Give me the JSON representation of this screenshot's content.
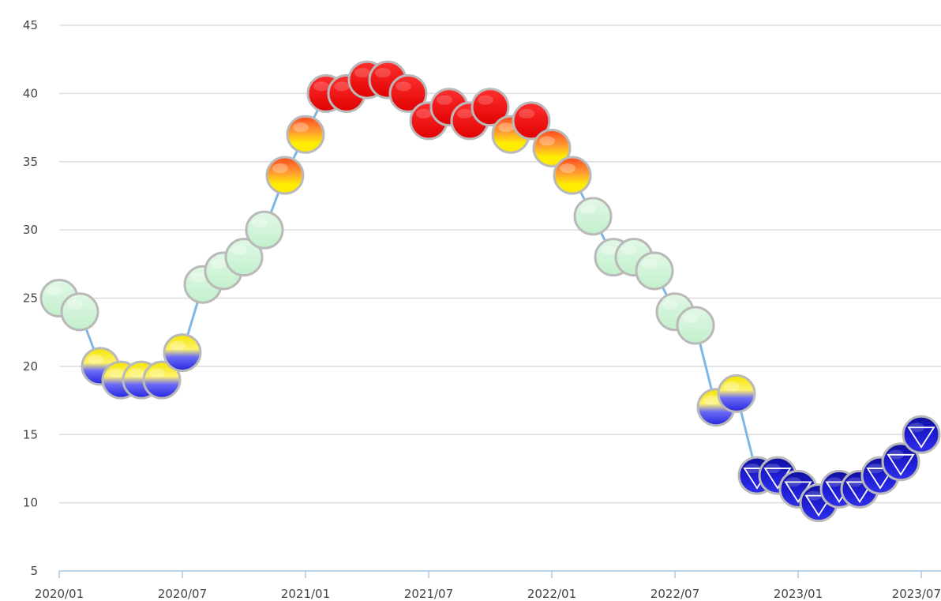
{
  "colors": {
    "line": "#7fb6e6",
    "grid": "#dcdcdc",
    "axis": "#a8c6e0",
    "low": "#1a1ad6",
    "mid": "#c8f0d0",
    "high": "#ff1a1a",
    "yellow": "#ffee00",
    "orange": "#ff7a20"
  },
  "chart_data": {
    "type": "line",
    "title": "",
    "xlabel": "",
    "ylabel": "",
    "ylim": [
      5,
      45
    ],
    "y_ticks": [
      5,
      10,
      15,
      20,
      25,
      30,
      35,
      40,
      45
    ],
    "x_ticks": [
      "2020/01",
      "2020/07",
      "2021/01",
      "2021/07",
      "2022/01",
      "2022/07",
      "2023/01",
      "2023/07"
    ],
    "grid": true,
    "legend": "none",
    "series": [
      {
        "x": [
          "2020/01",
          "2020/02",
          "2020/03",
          "2020/04",
          "2020/05",
          "2020/06",
          "2020/07",
          "2020/08",
          "2020/09",
          "2020/10",
          "2020/11",
          "2020/12",
          "2021/01",
          "2021/02",
          "2021/03",
          "2021/04",
          "2021/05",
          "2021/06",
          "2021/07",
          "2021/08",
          "2021/09",
          "2021/10",
          "2021/11",
          "2021/12",
          "2022/01",
          "2022/02",
          "2022/03",
          "2022/04",
          "2022/05",
          "2022/06",
          "2022/07",
          "2022/08",
          "2022/09",
          "2022/10",
          "2022/11",
          "2022/12",
          "2023/01",
          "2023/02",
          "2023/03",
          "2023/04",
          "2023/05",
          "2023/06",
          "2023/07"
        ],
        "values": [
          25,
          24,
          20,
          19,
          19,
          19,
          21,
          26,
          27,
          28,
          30,
          34,
          37,
          40,
          40,
          41,
          41,
          40,
          38,
          39,
          38,
          39,
          37,
          38,
          36,
          34,
          31,
          28,
          28,
          27,
          24,
          23,
          17,
          18,
          12,
          12,
          11,
          10,
          11,
          11,
          12,
          13,
          15
        ]
      }
    ]
  }
}
